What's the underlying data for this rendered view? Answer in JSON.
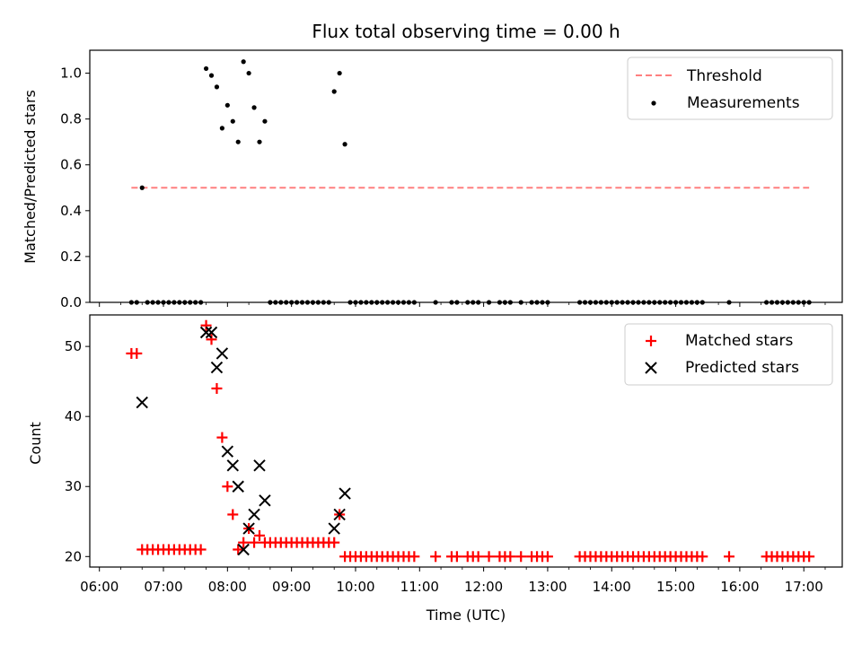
{
  "chart_data": [
    {
      "type": "scatter",
      "title": "Flux total observing time = 0.00 h",
      "xlabel": "",
      "ylabel": "Matched/Predicted stars",
      "xlim": [
        "06:00",
        "17:45"
      ],
      "ylim": [
        0,
        1.1
      ],
      "yticks": [
        "0.0",
        "0.2",
        "0.4",
        "0.6",
        "0.8",
        "1.0"
      ],
      "legend_position": "top-right",
      "series": [
        {
          "name": "Threshold",
          "kind": "line",
          "style": "dashed",
          "color": "#ff7f7f",
          "points": [
            [
              "06:30",
              0.5
            ],
            [
              "17:05",
              0.5
            ]
          ]
        },
        {
          "name": "Measurements",
          "kind": "scatter",
          "marker": "dot",
          "color": "#000000",
          "points": [
            [
              "06:30",
              0.0
            ],
            [
              "06:35",
              0.0
            ],
            [
              "06:40",
              0.5
            ],
            [
              "06:45",
              0.0
            ],
            [
              "06:50",
              0.0
            ],
            [
              "06:55",
              0.0
            ],
            [
              "07:00",
              0.0
            ],
            [
              "07:05",
              0.0
            ],
            [
              "07:10",
              0.0
            ],
            [
              "07:15",
              0.0
            ],
            [
              "07:20",
              0.0
            ],
            [
              "07:25",
              0.0
            ],
            [
              "07:30",
              0.0
            ],
            [
              "07:35",
              0.0
            ],
            [
              "07:40",
              1.02
            ],
            [
              "07:45",
              0.99
            ],
            [
              "07:50",
              0.94
            ],
            [
              "07:55",
              0.76
            ],
            [
              "08:00",
              0.86
            ],
            [
              "08:05",
              0.79
            ],
            [
              "08:10",
              0.7
            ],
            [
              "08:15",
              1.05
            ],
            [
              "08:20",
              1.0
            ],
            [
              "08:25",
              0.85
            ],
            [
              "08:30",
              0.7
            ],
            [
              "08:35",
              0.79
            ],
            [
              "08:40",
              0.0
            ],
            [
              "08:45",
              0.0
            ],
            [
              "08:50",
              0.0
            ],
            [
              "08:55",
              0.0
            ],
            [
              "09:00",
              0.0
            ],
            [
              "09:05",
              0.0
            ],
            [
              "09:10",
              0.0
            ],
            [
              "09:15",
              0.0
            ],
            [
              "09:20",
              0.0
            ],
            [
              "09:25",
              0.0
            ],
            [
              "09:30",
              0.0
            ],
            [
              "09:35",
              0.0
            ],
            [
              "09:40",
              0.92
            ],
            [
              "09:45",
              1.0
            ],
            [
              "09:50",
              0.69
            ],
            [
              "09:55",
              0.0
            ],
            [
              "10:00",
              0.0
            ],
            [
              "10:05",
              0.0
            ],
            [
              "10:10",
              0.0
            ],
            [
              "10:15",
              0.0
            ],
            [
              "10:20",
              0.0
            ],
            [
              "10:25",
              0.0
            ],
            [
              "10:30",
              0.0
            ],
            [
              "10:35",
              0.0
            ],
            [
              "10:40",
              0.0
            ],
            [
              "10:45",
              0.0
            ],
            [
              "10:50",
              0.0
            ],
            [
              "10:55",
              0.0
            ],
            [
              "11:15",
              0.0
            ],
            [
              "11:30",
              0.0
            ],
            [
              "11:35",
              0.0
            ],
            [
              "11:45",
              0.0
            ],
            [
              "11:50",
              0.0
            ],
            [
              "11:55",
              0.0
            ],
            [
              "12:05",
              0.0
            ],
            [
              "12:15",
              0.0
            ],
            [
              "12:20",
              0.0
            ],
            [
              "12:25",
              0.0
            ],
            [
              "12:35",
              0.0
            ],
            [
              "12:45",
              0.0
            ],
            [
              "12:50",
              0.0
            ],
            [
              "12:55",
              0.0
            ],
            [
              "13:00",
              0.0
            ],
            [
              "13:30",
              0.0
            ],
            [
              "13:35",
              0.0
            ],
            [
              "13:40",
              0.0
            ],
            [
              "13:45",
              0.0
            ],
            [
              "13:50",
              0.0
            ],
            [
              "13:55",
              0.0
            ],
            [
              "14:00",
              0.0
            ],
            [
              "14:05",
              0.0
            ],
            [
              "14:10",
              0.0
            ],
            [
              "14:15",
              0.0
            ],
            [
              "14:20",
              0.0
            ],
            [
              "14:25",
              0.0
            ],
            [
              "14:30",
              0.0
            ],
            [
              "14:35",
              0.0
            ],
            [
              "14:40",
              0.0
            ],
            [
              "14:45",
              0.0
            ],
            [
              "14:50",
              0.0
            ],
            [
              "14:55",
              0.0
            ],
            [
              "15:00",
              0.0
            ],
            [
              "15:05",
              0.0
            ],
            [
              "15:10",
              0.0
            ],
            [
              "15:15",
              0.0
            ],
            [
              "15:20",
              0.0
            ],
            [
              "15:25",
              0.0
            ],
            [
              "15:50",
              0.0
            ],
            [
              "16:25",
              0.0
            ],
            [
              "16:30",
              0.0
            ],
            [
              "16:35",
              0.0
            ],
            [
              "16:40",
              0.0
            ],
            [
              "16:45",
              0.0
            ],
            [
              "16:50",
              0.0
            ],
            [
              "16:55",
              0.0
            ],
            [
              "17:00",
              0.0
            ],
            [
              "17:05",
              0.0
            ]
          ]
        }
      ]
    },
    {
      "type": "scatter",
      "title": "",
      "xlabel": "Time (UTC)",
      "ylabel": "Count",
      "xlim": [
        "06:00",
        "17:45"
      ],
      "ylim": [
        18.5,
        54.5
      ],
      "yticks": [
        "20",
        "30",
        "40",
        "50"
      ],
      "xticks": [
        "06:00",
        "07:00",
        "08:00",
        "09:00",
        "10:00",
        "11:00",
        "12:00",
        "13:00",
        "14:00",
        "15:00",
        "16:00",
        "17:00"
      ],
      "legend_position": "top-right",
      "series": [
        {
          "name": "Matched stars",
          "kind": "scatter",
          "marker": "plus",
          "color": "#ff0000",
          "points": [
            [
              "06:30",
              49
            ],
            [
              "06:35",
              49
            ],
            [
              "06:40",
              21
            ],
            [
              "06:45",
              21
            ],
            [
              "06:50",
              21
            ],
            [
              "06:55",
              21
            ],
            [
              "07:00",
              21
            ],
            [
              "07:05",
              21
            ],
            [
              "07:10",
              21
            ],
            [
              "07:15",
              21
            ],
            [
              "07:20",
              21
            ],
            [
              "07:25",
              21
            ],
            [
              "07:30",
              21
            ],
            [
              "07:35",
              21
            ],
            [
              "07:40",
              53
            ],
            [
              "07:45",
              51
            ],
            [
              "07:50",
              44
            ],
            [
              "07:55",
              37
            ],
            [
              "08:00",
              30
            ],
            [
              "08:05",
              26
            ],
            [
              "08:10",
              21
            ],
            [
              "08:15",
              22
            ],
            [
              "08:20",
              24
            ],
            [
              "08:25",
              22
            ],
            [
              "08:30",
              23
            ],
            [
              "08:35",
              22
            ],
            [
              "08:40",
              22
            ],
            [
              "08:45",
              22
            ],
            [
              "08:50",
              22
            ],
            [
              "08:55",
              22
            ],
            [
              "09:00",
              22
            ],
            [
              "09:05",
              22
            ],
            [
              "09:10",
              22
            ],
            [
              "09:15",
              22
            ],
            [
              "09:20",
              22
            ],
            [
              "09:25",
              22
            ],
            [
              "09:30",
              22
            ],
            [
              "09:35",
              22
            ],
            [
              "09:40",
              22
            ],
            [
              "09:45",
              26
            ],
            [
              "09:50",
              20
            ],
            [
              "09:55",
              20
            ],
            [
              "10:00",
              20
            ],
            [
              "10:05",
              20
            ],
            [
              "10:10",
              20
            ],
            [
              "10:15",
              20
            ],
            [
              "10:20",
              20
            ],
            [
              "10:25",
              20
            ],
            [
              "10:30",
              20
            ],
            [
              "10:35",
              20
            ],
            [
              "10:40",
              20
            ],
            [
              "10:45",
              20
            ],
            [
              "10:50",
              20
            ],
            [
              "10:55",
              20
            ],
            [
              "11:15",
              20
            ],
            [
              "11:30",
              20
            ],
            [
              "11:35",
              20
            ],
            [
              "11:45",
              20
            ],
            [
              "11:50",
              20
            ],
            [
              "11:55",
              20
            ],
            [
              "12:05",
              20
            ],
            [
              "12:15",
              20
            ],
            [
              "12:20",
              20
            ],
            [
              "12:25",
              20
            ],
            [
              "12:35",
              20
            ],
            [
              "12:45",
              20
            ],
            [
              "12:50",
              20
            ],
            [
              "12:55",
              20
            ],
            [
              "13:00",
              20
            ],
            [
              "13:30",
              20
            ],
            [
              "13:35",
              20
            ],
            [
              "13:40",
              20
            ],
            [
              "13:45",
              20
            ],
            [
              "13:50",
              20
            ],
            [
              "13:55",
              20
            ],
            [
              "14:00",
              20
            ],
            [
              "14:05",
              20
            ],
            [
              "14:10",
              20
            ],
            [
              "14:15",
              20
            ],
            [
              "14:20",
              20
            ],
            [
              "14:25",
              20
            ],
            [
              "14:30",
              20
            ],
            [
              "14:35",
              20
            ],
            [
              "14:40",
              20
            ],
            [
              "14:45",
              20
            ],
            [
              "14:50",
              20
            ],
            [
              "14:55",
              20
            ],
            [
              "15:00",
              20
            ],
            [
              "15:05",
              20
            ],
            [
              "15:10",
              20
            ],
            [
              "15:15",
              20
            ],
            [
              "15:20",
              20
            ],
            [
              "15:25",
              20
            ],
            [
              "15:50",
              20
            ],
            [
              "16:25",
              20
            ],
            [
              "16:30",
              20
            ],
            [
              "16:35",
              20
            ],
            [
              "16:40",
              20
            ],
            [
              "16:45",
              20
            ],
            [
              "16:50",
              20
            ],
            [
              "16:55",
              20
            ],
            [
              "17:00",
              20
            ],
            [
              "17:05",
              20
            ]
          ]
        },
        {
          "name": "Predicted stars",
          "kind": "scatter",
          "marker": "x",
          "color": "#000000",
          "points": [
            [
              "06:40",
              42
            ],
            [
              "07:40",
              52
            ],
            [
              "07:45",
              52
            ],
            [
              "07:50",
              47
            ],
            [
              "07:55",
              49
            ],
            [
              "08:00",
              35
            ],
            [
              "08:05",
              33
            ],
            [
              "08:10",
              30
            ],
            [
              "08:15",
              21
            ],
            [
              "08:20",
              24
            ],
            [
              "08:25",
              26
            ],
            [
              "08:30",
              33
            ],
            [
              "08:35",
              28
            ],
            [
              "09:40",
              24
            ],
            [
              "09:45",
              26
            ],
            [
              "09:50",
              29
            ]
          ]
        }
      ]
    }
  ]
}
